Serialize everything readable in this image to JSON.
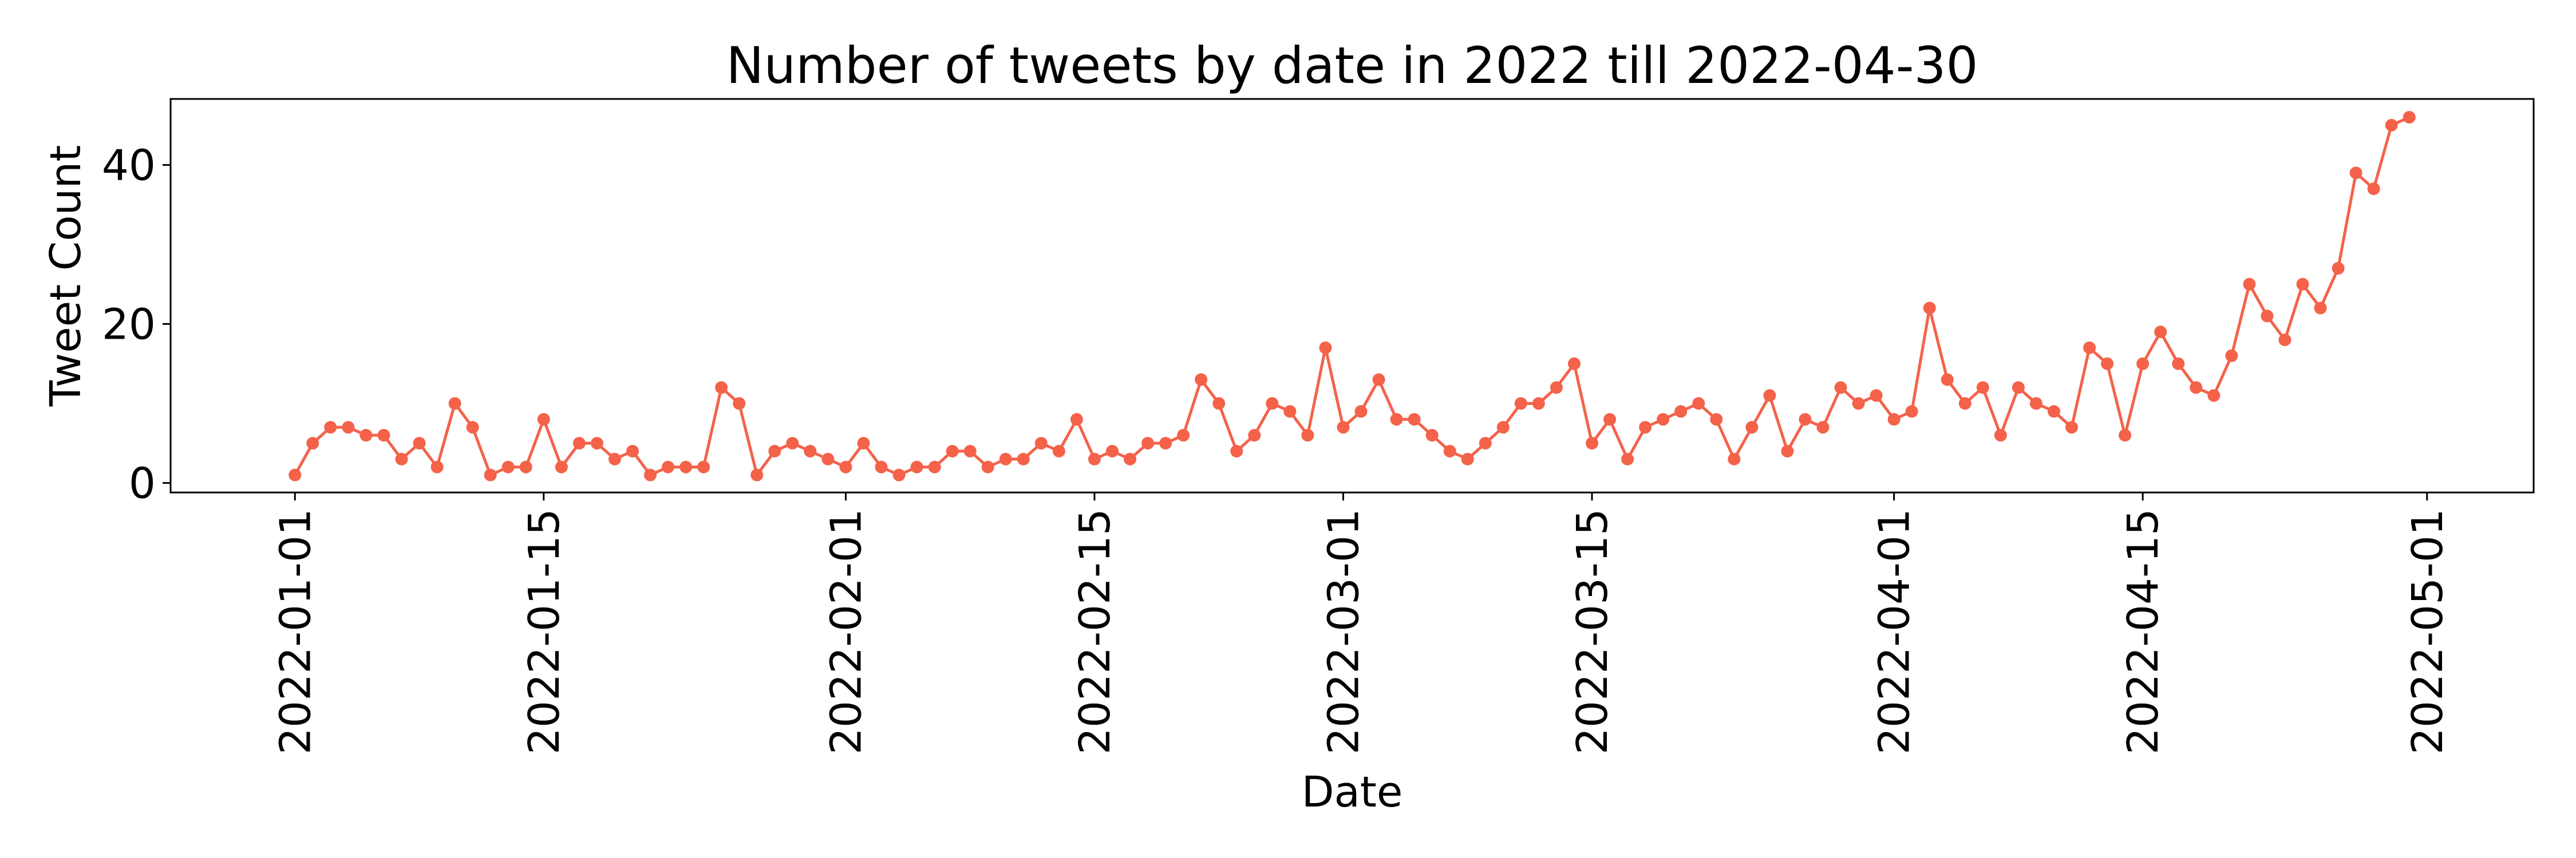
{
  "chart_data": {
    "type": "line",
    "title": "Number of tweets by date in 2022 till 2022-04-30",
    "xlabel": "Date",
    "ylabel": "Tweet Count",
    "x": [
      "2022-01-01",
      "2022-01-02",
      "2022-01-03",
      "2022-01-04",
      "2022-01-05",
      "2022-01-06",
      "2022-01-07",
      "2022-01-08",
      "2022-01-09",
      "2022-01-10",
      "2022-01-11",
      "2022-01-12",
      "2022-01-13",
      "2022-01-14",
      "2022-01-15",
      "2022-01-16",
      "2022-01-17",
      "2022-01-18",
      "2022-01-19",
      "2022-01-20",
      "2022-01-21",
      "2022-01-22",
      "2022-01-23",
      "2022-01-24",
      "2022-01-25",
      "2022-01-26",
      "2022-01-27",
      "2022-01-28",
      "2022-01-29",
      "2022-01-30",
      "2022-01-31",
      "2022-02-01",
      "2022-02-02",
      "2022-02-03",
      "2022-02-04",
      "2022-02-05",
      "2022-02-06",
      "2022-02-07",
      "2022-02-08",
      "2022-02-09",
      "2022-02-10",
      "2022-02-11",
      "2022-02-12",
      "2022-02-13",
      "2022-02-14",
      "2022-02-15",
      "2022-02-16",
      "2022-02-17",
      "2022-02-18",
      "2022-02-19",
      "2022-02-20",
      "2022-02-21",
      "2022-02-22",
      "2022-02-23",
      "2022-02-24",
      "2022-02-25",
      "2022-02-26",
      "2022-02-27",
      "2022-02-28",
      "2022-03-01",
      "2022-03-02",
      "2022-03-03",
      "2022-03-04",
      "2022-03-05",
      "2022-03-06",
      "2022-03-07",
      "2022-03-08",
      "2022-03-09",
      "2022-03-10",
      "2022-03-11",
      "2022-03-12",
      "2022-03-13",
      "2022-03-14",
      "2022-03-15",
      "2022-03-16",
      "2022-03-17",
      "2022-03-18",
      "2022-03-19",
      "2022-03-20",
      "2022-03-21",
      "2022-03-22",
      "2022-03-23",
      "2022-03-24",
      "2022-03-25",
      "2022-03-26",
      "2022-03-27",
      "2022-03-28",
      "2022-03-29",
      "2022-03-30",
      "2022-03-31",
      "2022-04-01",
      "2022-04-02",
      "2022-04-03",
      "2022-04-04",
      "2022-04-05",
      "2022-04-06",
      "2022-04-07",
      "2022-04-08",
      "2022-04-09",
      "2022-04-10",
      "2022-04-11",
      "2022-04-12",
      "2022-04-13",
      "2022-04-14",
      "2022-04-15",
      "2022-04-16",
      "2022-04-17",
      "2022-04-18",
      "2022-04-19",
      "2022-04-20",
      "2022-04-21",
      "2022-04-22",
      "2022-04-23",
      "2022-04-24",
      "2022-04-25",
      "2022-04-26",
      "2022-04-27",
      "2022-04-28",
      "2022-04-29",
      "2022-04-30"
    ],
    "series": [
      {
        "values": [
          1,
          5,
          7,
          7,
          6,
          6,
          3,
          5,
          2,
          10,
          7,
          1,
          2,
          2,
          8,
          2,
          5,
          5,
          3,
          4,
          1,
          2,
          2,
          2,
          12,
          10,
          1,
          4,
          5,
          4,
          3,
          2,
          5,
          2,
          1,
          2,
          2,
          4,
          4,
          2,
          3,
          3,
          5,
          4,
          8,
          3,
          4,
          3,
          5,
          5,
          6,
          13,
          10,
          4,
          6,
          10,
          9,
          6,
          17,
          7,
          9,
          13,
          8,
          8,
          6,
          4,
          3,
          5,
          7,
          10,
          10,
          12,
          15,
          5,
          8,
          3,
          7,
          8,
          9,
          10,
          8,
          3,
          7,
          11,
          4,
          8,
          7,
          12,
          10,
          11,
          8,
          9,
          22,
          13,
          10,
          12,
          6,
          12,
          10,
          9,
          7,
          17,
          15,
          6,
          15,
          19,
          15,
          12,
          11,
          16,
          25,
          21,
          18,
          25,
          22,
          27,
          39,
          37,
          45,
          46
        ],
        "color": "#f4624a"
      }
    ],
    "xlim": [
      "2021-12-25",
      "2022-05-07"
    ],
    "ylim": [
      -1.2,
      48.3
    ],
    "x_ticks": [
      "2022-01-01",
      "2022-01-15",
      "2022-02-01",
      "2022-02-15",
      "2022-03-01",
      "2022-03-15",
      "2022-04-01",
      "2022-04-15",
      "2022-05-01"
    ],
    "y_ticks": [
      0,
      20,
      40
    ],
    "grid": false,
    "marker": "circle"
  }
}
